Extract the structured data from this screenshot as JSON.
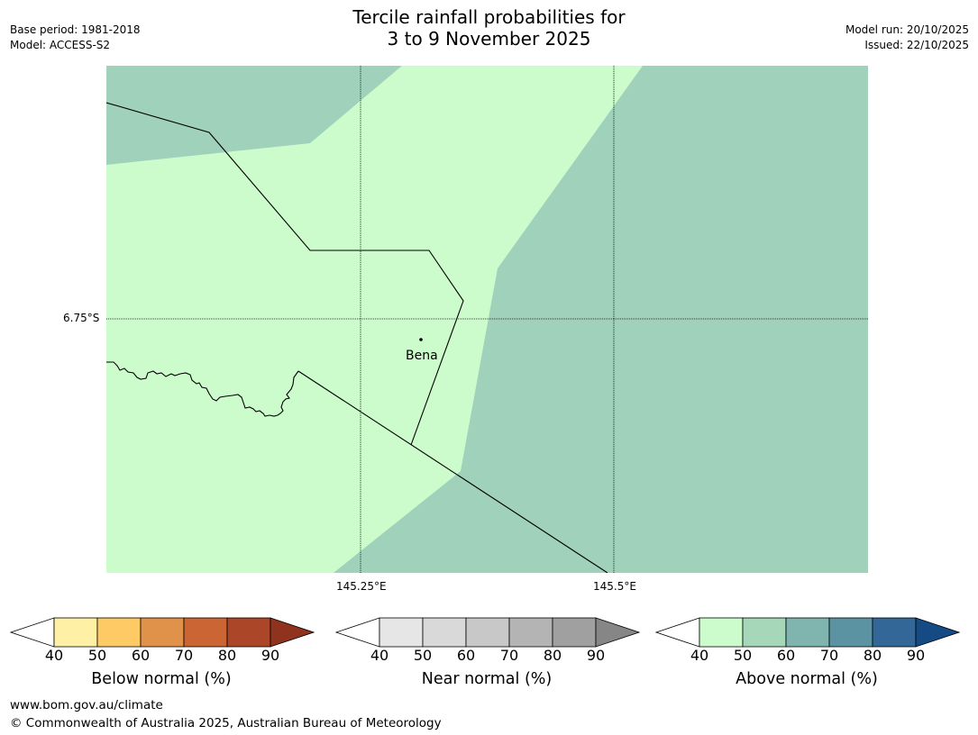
{
  "header": {
    "title_line1": "Tercile rainfall probabilities for",
    "title_line2": "3 to 9 November 2025",
    "base_period": "Base period: 1981-2018",
    "model": "Model: ACCESS-S2",
    "model_run": "Model run: 20/10/2025",
    "issued": "Issued: 22/10/2025"
  },
  "map": {
    "lat_label": "6.75°S",
    "lon_labels": [
      "145.25°E",
      "145.5°E"
    ],
    "place_label": "Bena",
    "colors": {
      "above_40_50": "#ccfccc",
      "above_50_60": "#a0d1bb",
      "boundary": "#000000"
    }
  },
  "colorbars": [
    {
      "title": "Below normal (%)",
      "ticks": [
        "40",
        "50",
        "60",
        "70",
        "80",
        "90"
      ],
      "colors": [
        "#fef0a5",
        "#fdca66",
        "#e0914a",
        "#cb6534",
        "#ac4628",
        "#8f321e"
      ]
    },
    {
      "title": "Near normal (%)",
      "ticks": [
        "40",
        "50",
        "60",
        "70",
        "80",
        "90"
      ],
      "colors": [
        "#e6e6e6",
        "#d9d9d9",
        "#c8c8c8",
        "#b4b4b4",
        "#a0a0a0",
        "#868686"
      ]
    },
    {
      "title": "Above normal (%)",
      "ticks": [
        "40",
        "50",
        "60",
        "70",
        "80",
        "90"
      ],
      "colors": [
        "#ccfccc",
        "#a5d7b8",
        "#7fb5ae",
        "#5b93a2",
        "#336797",
        "#144b84"
      ]
    }
  ],
  "footer": {
    "url": "www.bom.gov.au/climate",
    "copyright": "© Commonwealth of Australia 2025, Australian Bureau of Meteorology"
  }
}
